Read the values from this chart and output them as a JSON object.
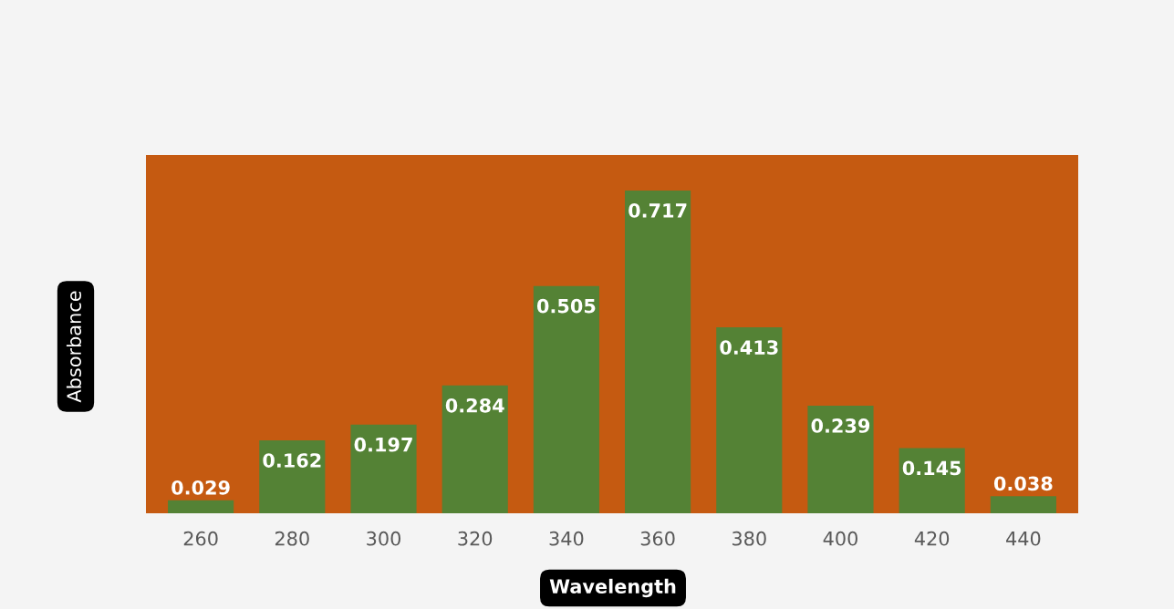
{
  "chart_data": {
    "type": "bar",
    "xlabel": "Wavelength",
    "ylabel": "Absorbance",
    "categories": [
      "260",
      "280",
      "300",
      "320",
      "340",
      "360",
      "380",
      "400",
      "420",
      "440"
    ],
    "values": [
      0.029,
      0.162,
      0.197,
      0.284,
      0.505,
      0.717,
      0.413,
      0.239,
      0.145,
      0.038
    ],
    "color": "#548235",
    "data_labels": true,
    "grid": false,
    "legend": false
  }
}
